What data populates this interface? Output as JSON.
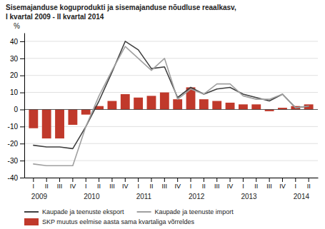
{
  "chart_data": {
    "type": "bar",
    "title": "Sisemajanduse koguprodukti ja sisemajanduse nõudluse reaalkasv,",
    "subtitle": "I kvartal 2009 - II kvartal 2014",
    "ylabel": "%",
    "categories": [
      "I",
      "II",
      "III",
      "IV",
      "I",
      "II",
      "III",
      "IV",
      "I",
      "II",
      "III",
      "IV",
      "I",
      "II",
      "III",
      "IV",
      "I",
      "II",
      "III",
      "IV",
      "I",
      "II"
    ],
    "annotations": [
      {
        "text": "2009",
        "x": 0
      },
      {
        "text": "2010",
        "x": 4
      },
      {
        "text": "2011",
        "x": 8
      },
      {
        "text": "2012",
        "x": 12
      },
      {
        "text": "2013",
        "x": 16
      },
      {
        "text": "2014",
        "x": 20
      }
    ],
    "series": [
      {
        "name": "SKP muutus eelmise aasta sama kvartaliga võrreldes",
        "type": "bar",
        "color": "#c0392b",
        "values": [
          -11,
          -17,
          -17,
          -9,
          -3,
          2,
          5,
          9,
          7,
          8,
          10,
          6,
          13,
          6,
          5,
          4,
          3,
          3,
          -1,
          1,
          2,
          3
        ]
      },
      {
        "name": "Kaupade ja teenuste eksport",
        "type": "line",
        "color": "#404040",
        "values": [
          -21,
          -22,
          -22,
          -23,
          -10,
          5,
          22,
          40,
          35,
          24,
          25,
          7,
          13,
          9,
          12,
          13,
          9,
          7,
          5,
          9,
          1,
          2
        ]
      },
      {
        "name": "Kaupade ja teenuste import",
        "type": "line",
        "color": "#a0a0a0",
        "values": [
          -32,
          -33,
          -33,
          -33,
          -10,
          8,
          23,
          37,
          30,
          23,
          30,
          6,
          12,
          9,
          15,
          15,
          8,
          6,
          6,
          9,
          1,
          2
        ]
      }
    ],
    "ylim": [
      -40,
      45
    ],
    "yticks": [
      -40,
      -30,
      -20,
      -10,
      0,
      10,
      20,
      30,
      40
    ],
    "grid": true,
    "legend": "bottom"
  }
}
